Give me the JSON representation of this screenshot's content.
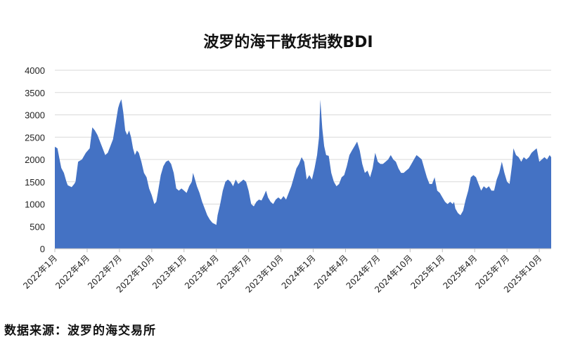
{
  "source_text": "数据来源：波罗的海交易所",
  "chart_data": {
    "type": "area",
    "title": "波罗的海干散货指数BDI",
    "xlabel": "",
    "ylabel": "",
    "ylim": [
      0,
      4000
    ],
    "yticks": [
      0,
      500,
      1000,
      1500,
      2000,
      2500,
      3000,
      3500,
      4000
    ],
    "xticks": [
      "2022年1月",
      "2022年4月",
      "2022年7月",
      "2022年10月",
      "2023年1月",
      "2023年4月",
      "2023年7月",
      "2023年10月",
      "2024年1月",
      "2024年4月",
      "2024年7月",
      "2024年10月",
      "2025年1月",
      "2025年4月",
      "2025年7月",
      "2025年10月"
    ],
    "grid": true,
    "color": "#4472C4",
    "series": [
      {
        "values": [
          [
            0,
            2285
          ],
          [
            0.2,
            2250
          ],
          [
            0.4,
            1950
          ],
          [
            0.5,
            1810
          ],
          [
            0.7,
            1700
          ],
          [
            0.9,
            1500
          ],
          [
            1.0,
            1420
          ],
          [
            1.3,
            1380
          ],
          [
            1.5,
            1450
          ],
          [
            1.6,
            1500
          ],
          [
            1.8,
            1950
          ],
          [
            2.1,
            2000
          ],
          [
            2.4,
            2150
          ],
          [
            2.7,
            2250
          ],
          [
            2.9,
            2720
          ],
          [
            3.1,
            2650
          ],
          [
            3.3,
            2550
          ],
          [
            3.5,
            2400
          ],
          [
            3.7,
            2250
          ],
          [
            3.9,
            2100
          ],
          [
            4.1,
            2150
          ],
          [
            4.3,
            2300
          ],
          [
            4.5,
            2450
          ],
          [
            4.7,
            2800
          ],
          [
            4.9,
            3150
          ],
          [
            5.0,
            3250
          ],
          [
            5.15,
            3350
          ],
          [
            5.3,
            3050
          ],
          [
            5.45,
            2650
          ],
          [
            5.6,
            2550
          ],
          [
            5.75,
            2650
          ],
          [
            5.9,
            2500
          ],
          [
            6.05,
            2250
          ],
          [
            6.2,
            2100
          ],
          [
            6.35,
            2200
          ],
          [
            6.5,
            2150
          ],
          [
            6.7,
            1950
          ],
          [
            6.9,
            1700
          ],
          [
            7.1,
            1600
          ],
          [
            7.3,
            1350
          ],
          [
            7.5,
            1200
          ],
          [
            7.7,
            1000
          ],
          [
            7.85,
            1050
          ],
          [
            8.0,
            1300
          ],
          [
            8.2,
            1650
          ],
          [
            8.4,
            1850
          ],
          [
            8.6,
            1950
          ],
          [
            8.8,
            1980
          ],
          [
            9.0,
            1900
          ],
          [
            9.2,
            1700
          ],
          [
            9.4,
            1350
          ],
          [
            9.6,
            1300
          ],
          [
            9.8,
            1350
          ],
          [
            10.0,
            1300
          ],
          [
            10.2,
            1250
          ],
          [
            10.4,
            1400
          ],
          [
            10.6,
            1500
          ],
          [
            10.7,
            1700
          ],
          [
            10.85,
            1550
          ],
          [
            11.0,
            1400
          ],
          [
            11.2,
            1250
          ],
          [
            11.4,
            1050
          ],
          [
            11.6,
            900
          ],
          [
            11.8,
            750
          ],
          [
            12.0,
            650
          ],
          [
            12.2,
            580
          ],
          [
            12.4,
            550
          ],
          [
            12.5,
            530
          ],
          [
            12.6,
            750
          ],
          [
            12.8,
            1000
          ],
          [
            13.0,
            1300
          ],
          [
            13.2,
            1500
          ],
          [
            13.4,
            1550
          ],
          [
            13.6,
            1500
          ],
          [
            13.8,
            1400
          ],
          [
            14.0,
            1550
          ],
          [
            14.2,
            1450
          ],
          [
            14.4,
            1500
          ],
          [
            14.6,
            1550
          ],
          [
            14.8,
            1500
          ],
          [
            15.0,
            1300
          ],
          [
            15.2,
            1000
          ],
          [
            15.4,
            950
          ],
          [
            15.6,
            1050
          ],
          [
            15.8,
            1100
          ],
          [
            16.0,
            1080
          ],
          [
            16.2,
            1200
          ],
          [
            16.35,
            1300
          ],
          [
            16.5,
            1150
          ],
          [
            16.7,
            1050
          ],
          [
            16.9,
            1000
          ],
          [
            17.1,
            1100
          ],
          [
            17.3,
            1150
          ],
          [
            17.5,
            1100
          ],
          [
            17.7,
            1180
          ],
          [
            17.9,
            1100
          ],
          [
            18.1,
            1250
          ],
          [
            18.3,
            1400
          ],
          [
            18.5,
            1600
          ],
          [
            18.7,
            1800
          ],
          [
            18.9,
            1900
          ],
          [
            19.1,
            2050
          ],
          [
            19.3,
            1950
          ],
          [
            19.5,
            1550
          ],
          [
            19.7,
            1650
          ],
          [
            19.9,
            1550
          ],
          [
            20.1,
            1800
          ],
          [
            20.3,
            2100
          ],
          [
            20.45,
            2500
          ],
          [
            20.55,
            3340
          ],
          [
            20.7,
            2700
          ],
          [
            20.85,
            2300
          ],
          [
            21.0,
            2100
          ],
          [
            21.2,
            2080
          ],
          [
            21.4,
            1700
          ],
          [
            21.6,
            1500
          ],
          [
            21.8,
            1400
          ],
          [
            22.0,
            1450
          ],
          [
            22.2,
            1600
          ],
          [
            22.4,
            1650
          ],
          [
            22.6,
            1850
          ],
          [
            22.8,
            2100
          ],
          [
            23.0,
            2200
          ],
          [
            23.2,
            2300
          ],
          [
            23.4,
            2400
          ],
          [
            23.6,
            2200
          ],
          [
            23.8,
            1900
          ],
          [
            24.0,
            1700
          ],
          [
            24.2,
            1750
          ],
          [
            24.4,
            1600
          ],
          [
            24.6,
            1800
          ],
          [
            24.8,
            2150
          ],
          [
            25.0,
            1950
          ],
          [
            25.2,
            1900
          ],
          [
            25.4,
            1900
          ],
          [
            25.6,
            1950
          ],
          [
            25.8,
            2000
          ],
          [
            26.0,
            2100
          ],
          [
            26.2,
            2000
          ],
          [
            26.4,
            1950
          ],
          [
            26.6,
            1800
          ],
          [
            26.8,
            1700
          ],
          [
            27.0,
            1700
          ],
          [
            27.2,
            1750
          ],
          [
            27.4,
            1800
          ],
          [
            27.6,
            1900
          ],
          [
            27.8,
            2000
          ],
          [
            28.0,
            2100
          ],
          [
            28.2,
            2050
          ],
          [
            28.4,
            2000
          ],
          [
            28.6,
            1800
          ],
          [
            28.8,
            1600
          ],
          [
            29.0,
            1450
          ],
          [
            29.2,
            1450
          ],
          [
            29.4,
            1600
          ],
          [
            29.6,
            1300
          ],
          [
            29.8,
            1250
          ],
          [
            30.0,
            1150
          ],
          [
            30.2,
            1050
          ],
          [
            30.4,
            1000
          ],
          [
            30.6,
            1050
          ],
          [
            30.8,
            1000
          ],
          [
            30.9,
            1050
          ],
          [
            31.0,
            900
          ],
          [
            31.2,
            800
          ],
          [
            31.4,
            750
          ],
          [
            31.6,
            850
          ],
          [
            31.8,
            1100
          ],
          [
            32.0,
            1300
          ],
          [
            32.2,
            1600
          ],
          [
            32.4,
            1650
          ],
          [
            32.6,
            1600
          ],
          [
            32.8,
            1450
          ],
          [
            33.0,
            1300
          ],
          [
            33.2,
            1400
          ],
          [
            33.4,
            1350
          ],
          [
            33.6,
            1400
          ],
          [
            33.8,
            1300
          ],
          [
            34.0,
            1300
          ],
          [
            34.2,
            1550
          ],
          [
            34.4,
            1700
          ],
          [
            34.6,
            1950
          ],
          [
            34.8,
            1700
          ],
          [
            35.0,
            1500
          ],
          [
            35.2,
            1450
          ],
          [
            35.4,
            1900
          ],
          [
            35.5,
            2250
          ],
          [
            35.7,
            2100
          ],
          [
            35.9,
            2050
          ],
          [
            36.1,
            1950
          ],
          [
            36.3,
            2050
          ],
          [
            36.5,
            2000
          ],
          [
            36.7,
            2050
          ],
          [
            36.9,
            2150
          ],
          [
            37.1,
            2200
          ],
          [
            37.3,
            2250
          ],
          [
            37.5,
            1950
          ],
          [
            37.7,
            2000
          ],
          [
            37.9,
            2050
          ],
          [
            38.1,
            2000
          ],
          [
            38.3,
            2100
          ],
          [
            38.42,
            2050
          ]
        ]
      }
    ]
  }
}
